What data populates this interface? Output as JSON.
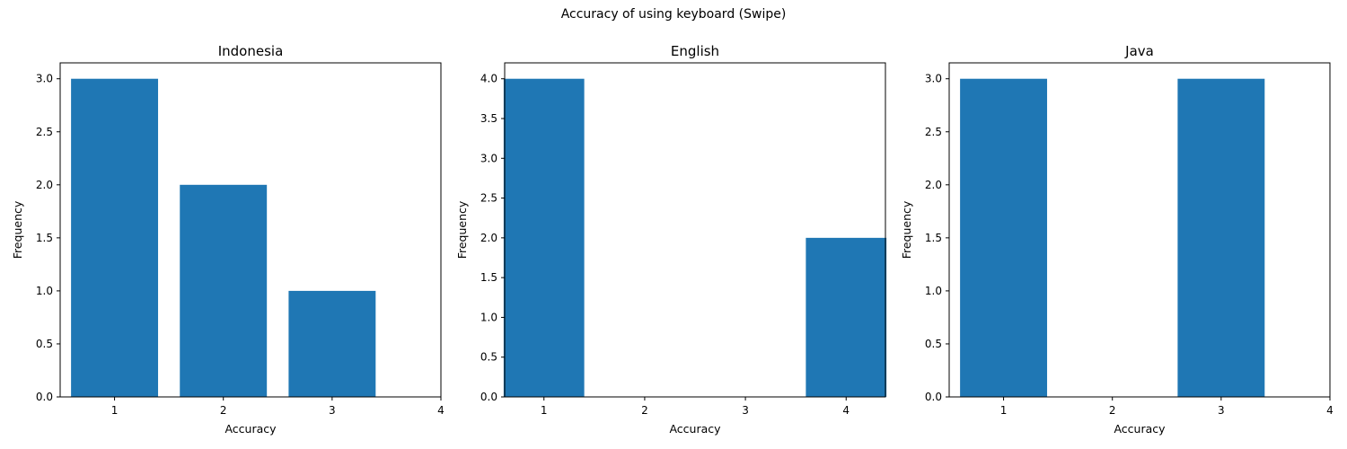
{
  "figure": {
    "title": "Accuracy of using keyboard (Swipe)"
  },
  "colors": {
    "bar": "#1f77b4",
    "axis": "#000000",
    "background": "#ffffff"
  },
  "chart_data": [
    {
      "type": "bar",
      "title": "Indonesia",
      "xlabel": "Accuracy",
      "ylabel": "Frequency",
      "x": [
        1,
        2,
        3
      ],
      "values": [
        3,
        2,
        1
      ],
      "bar_width": 0.8,
      "xlim": [
        0.5,
        4
      ],
      "ylim": [
        0,
        3.15
      ],
      "xticks": [
        1,
        2,
        3,
        4
      ],
      "yticks": [
        "0.0",
        "0.5",
        "1.0",
        "1.5",
        "2.0",
        "2.5",
        "3.0"
      ],
      "grid": false,
      "legend": "none"
    },
    {
      "type": "bar",
      "title": "English",
      "xlabel": "Accuracy",
      "ylabel": "Frequency",
      "x": [
        1,
        4
      ],
      "values": [
        4,
        2
      ],
      "bar_width": 0.8,
      "xlim": [
        0.61,
        4.39
      ],
      "ylim": [
        0,
        4.2
      ],
      "xticks": [
        1,
        2,
        3,
        4
      ],
      "yticks": [
        "0.0",
        "0.5",
        "1.0",
        "1.5",
        "2.0",
        "2.5",
        "3.0",
        "3.5",
        "4.0"
      ],
      "grid": false,
      "legend": "none"
    },
    {
      "type": "bar",
      "title": "Java",
      "xlabel": "Accuracy",
      "ylabel": "Frequency",
      "x": [
        1,
        3
      ],
      "values": [
        3,
        3
      ],
      "bar_width": 0.8,
      "xlim": [
        0.5,
        4
      ],
      "ylim": [
        0,
        3.15
      ],
      "xticks": [
        1,
        2,
        3,
        4
      ],
      "yticks": [
        "0.0",
        "0.5",
        "1.0",
        "1.5",
        "2.0",
        "2.5",
        "3.0"
      ],
      "grid": false,
      "legend": "none"
    }
  ]
}
